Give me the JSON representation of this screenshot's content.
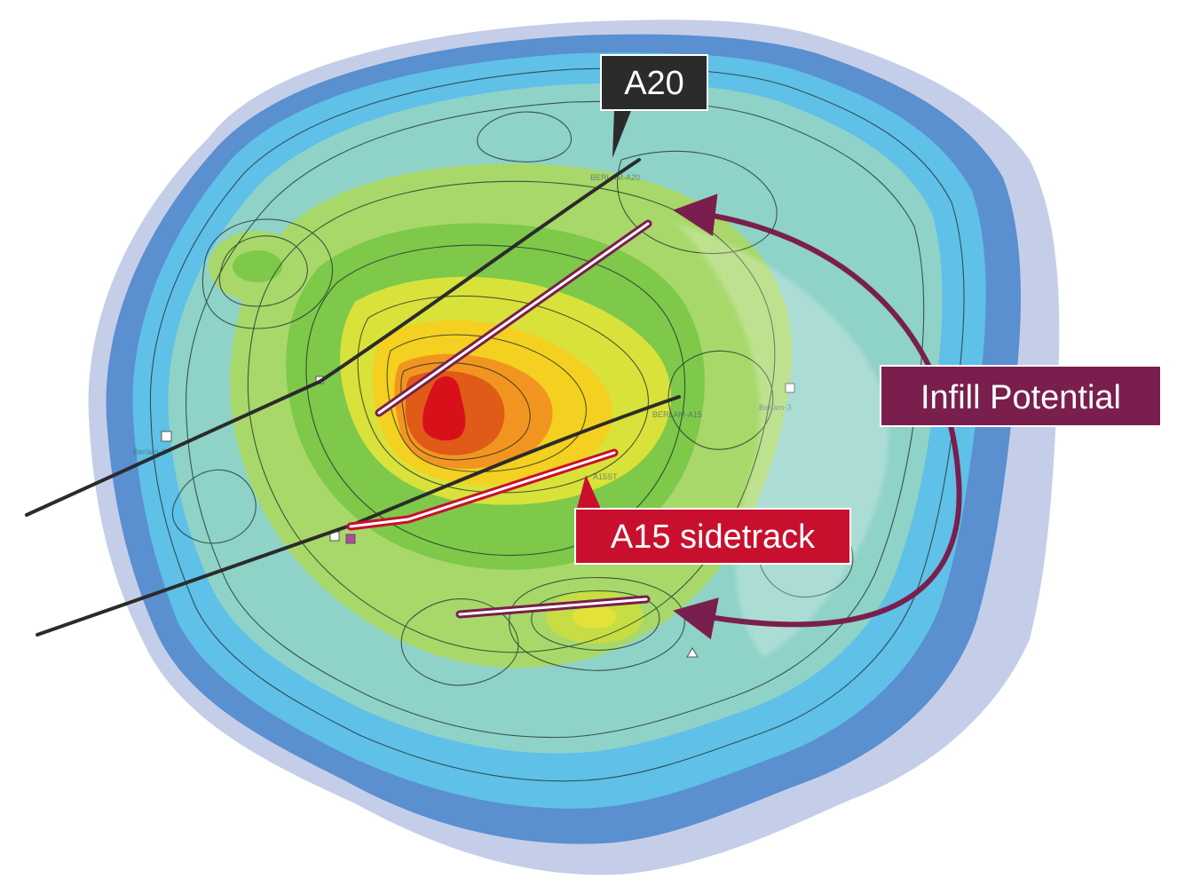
{
  "labels": {
    "a20": "A20",
    "a15": "A15 sidetrack",
    "infill": "Infill Potential"
  },
  "small_labels": {
    "well_a20": "BERLAM-A20",
    "well_a15": "BERLAM-A15",
    "well_a15st": "A15ST",
    "berlam3": "Berlam-3",
    "berlam2": "Berlam-2"
  },
  "colors": {
    "callout_dark": "#2b2b2b",
    "callout_red": "#c8102e",
    "callout_maroon": "#7a1f4d",
    "infill_arrow": "#7a1f4d",
    "well_dark": "#2b2b2b"
  }
}
